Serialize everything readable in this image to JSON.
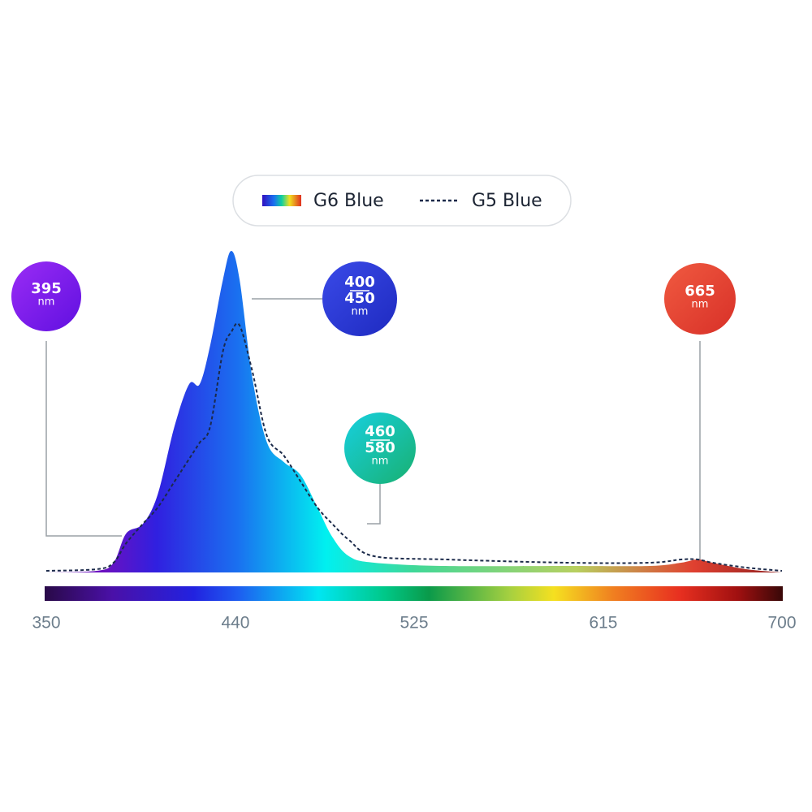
{
  "chart_data": {
    "type": "area",
    "x": [
      350,
      374,
      382,
      388,
      396,
      403,
      411,
      418,
      423,
      428,
      434,
      438,
      442,
      448,
      455,
      463,
      471,
      479,
      486,
      494,
      506,
      540,
      598,
      637,
      652,
      660,
      667,
      683,
      700
    ],
    "series": [
      {
        "name": "G6 Blue",
        "values": [
          0,
          0.5,
          3,
          12,
          15,
          24,
          45,
          58,
          58,
          70,
          90,
          99,
          90,
          60,
          40,
          34,
          30,
          20,
          11,
          5,
          3,
          2,
          2,
          2,
          3,
          4,
          3,
          1,
          0
        ]
      },
      {
        "name": "G5 Blue",
        "color": "#1b2a4a",
        "values": [
          0.5,
          1,
          3,
          9,
          15,
          20,
          28,
          35,
          40,
          45,
          68,
          74,
          76,
          62,
          42,
          36,
          28,
          20,
          15,
          10,
          5,
          4,
          3,
          3,
          4,
          4,
          3,
          1.5,
          0.5
        ]
      }
    ],
    "xlim": [
      350,
      700
    ],
    "xticks": [
      350,
      440,
      525,
      615,
      700
    ],
    "ylim": [
      0,
      100
    ],
    "annotations": [
      {
        "lines": [
          "395"
        ],
        "unit": "nm"
      },
      {
        "lines": [
          "400",
          "450"
        ],
        "unit": "nm"
      },
      {
        "lines": [
          "460",
          "580"
        ],
        "unit": "nm"
      },
      {
        "lines": [
          "665"
        ],
        "unit": "nm"
      }
    ]
  }
}
